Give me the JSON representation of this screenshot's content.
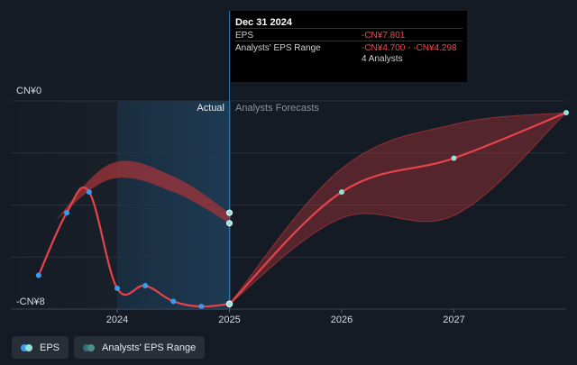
{
  "chart_data": {
    "type": "line",
    "y_axis": {
      "min_label": "-CN¥8",
      "max_label": "CN¥0",
      "range": [
        -8,
        0
      ]
    },
    "x_ticks": [
      "2024",
      "2025",
      "2026",
      "2027"
    ],
    "sections": {
      "actual": "Actual",
      "forecast": "Analysts Forecasts"
    },
    "series": [
      {
        "name": "EPS",
        "color": "#e8434a",
        "points": [
          {
            "x": 2023.3,
            "y": -6.7
          },
          {
            "x": 2023.55,
            "y": -4.3
          },
          {
            "x": 2023.75,
            "y": -3.5
          },
          {
            "x": 2024.0,
            "y": -7.2
          },
          {
            "x": 2024.25,
            "y": -7.1
          },
          {
            "x": 2024.5,
            "y": -7.7
          },
          {
            "x": 2024.75,
            "y": -7.9
          },
          {
            "x": 2025.0,
            "y": -7.801
          }
        ]
      },
      {
        "name": "EPS forecast",
        "color": "#e8434a",
        "points": [
          {
            "x": 2025.0,
            "y": -7.801
          },
          {
            "x": 2026.0,
            "y": -3.5
          },
          {
            "x": 2027.0,
            "y": -2.2
          },
          {
            "x": 2028.0,
            "y": -0.45
          }
        ]
      }
    ],
    "analyst_range": {
      "name": "Analysts' EPS Range",
      "past": [
        {
          "x": 2023.45,
          "low": -4.6,
          "high": -4.6
        },
        {
          "x": 2023.95,
          "low": -3.0,
          "high": -2.4
        },
        {
          "x": 2024.5,
          "low": -3.5,
          "high": -2.9
        },
        {
          "x": 2025.0,
          "low": -4.7,
          "high": -4.298
        }
      ],
      "forecast": [
        {
          "x": 2025.0,
          "low": -7.801,
          "high": -7.801
        },
        {
          "x": 2026.0,
          "low": -4.5,
          "high": -2.6
        },
        {
          "x": 2027.0,
          "low": -4.4,
          "high": -0.9
        },
        {
          "x": 2028.0,
          "low": -0.45,
          "high": -0.45
        }
      ]
    },
    "colors": {
      "eps": "#e8434a",
      "band": "#a3343a",
      "marker_past": "#3a9bf0",
      "marker_forecast": "#8fe3d8",
      "actual_shade": "#1e3a52"
    }
  },
  "tooltip": {
    "date": "Dec 31 2024",
    "rows": [
      {
        "key": "EPS",
        "value": "-CN¥7.801"
      },
      {
        "key": "Analysts' EPS Range",
        "value": "-CN¥4.700 - -CN¥4.298"
      }
    ],
    "note": "4 Analysts"
  },
  "legend": [
    {
      "label": "EPS"
    },
    {
      "label": "Analysts' EPS Range"
    }
  ]
}
